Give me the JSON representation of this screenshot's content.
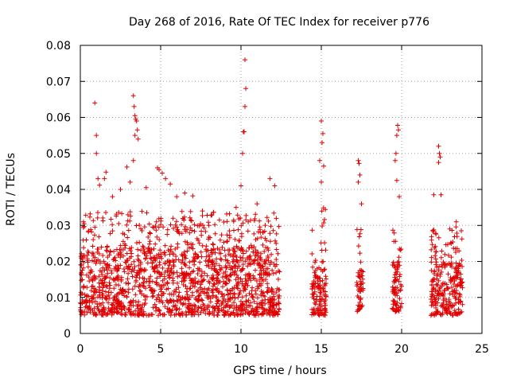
{
  "chart_data": {
    "type": "scatter",
    "title": "Day 268 of 2016, Rate Of TEC Index for receiver p776",
    "xlabel": "GPS time / hours",
    "ylabel": "ROTI / TECUs",
    "xlim": [
      0,
      25
    ],
    "ylim": [
      0,
      0.08
    ],
    "x_ticks": [
      "0",
      "5",
      "10",
      "15",
      "20",
      "25"
    ],
    "y_ticks": [
      "0",
      "0.01",
      "0.02",
      "0.03",
      "0.04",
      "0.05",
      "0.06",
      "0.07",
      "0.08"
    ],
    "grid": true,
    "marker": "+",
    "color": "#e00000",
    "series": [
      {
        "name": "p776",
        "segments": [
          {
            "x_range": [
              0.0,
              12.4
            ],
            "density": 130,
            "base": [
              0.005,
              0.024
            ],
            "tail": 0.034
          },
          {
            "x_range": [
              14.4,
              15.3
            ],
            "density": 140,
            "base": [
              0.005,
              0.02
            ],
            "tail": 0.036
          },
          {
            "x_range": [
              17.2,
              17.6
            ],
            "density": 140,
            "base": [
              0.006,
              0.018
            ],
            "tail": 0.03
          },
          {
            "x_range": [
              19.4,
              20.0
            ],
            "density": 140,
            "base": [
              0.006,
              0.02
            ],
            "tail": 0.03
          },
          {
            "x_range": [
              21.8,
              23.8
            ],
            "density": 130,
            "base": [
              0.005,
              0.02
            ],
            "tail": 0.03
          }
        ],
        "outliers": [
          [
            0.2,
            0.031
          ],
          [
            0.5,
            0.0282
          ],
          [
            0.9,
            0.064
          ],
          [
            1.0,
            0.055
          ],
          [
            1.0,
            0.05
          ],
          [
            1.1,
            0.043
          ],
          [
            1.2,
            0.0412
          ],
          [
            1.5,
            0.043
          ],
          [
            1.6,
            0.0448
          ],
          [
            2.0,
            0.038
          ],
          [
            2.5,
            0.04
          ],
          [
            2.9,
            0.0462
          ],
          [
            3.1,
            0.042
          ],
          [
            3.3,
            0.066
          ],
          [
            3.35,
            0.063
          ],
          [
            3.4,
            0.0605
          ],
          [
            3.45,
            0.0595
          ],
          [
            3.5,
            0.059
          ],
          [
            3.55,
            0.0565
          ],
          [
            3.4,
            0.055
          ],
          [
            3.6,
            0.054
          ],
          [
            3.3,
            0.048
          ],
          [
            4.1,
            0.0405
          ],
          [
            4.8,
            0.046
          ],
          [
            4.9,
            0.0455
          ],
          [
            5.1,
            0.0445
          ],
          [
            5.3,
            0.043
          ],
          [
            5.6,
            0.0415
          ],
          [
            6.0,
            0.038
          ],
          [
            6.5,
            0.039
          ],
          [
            7.0,
            0.0382
          ],
          [
            7.6,
            0.034
          ],
          [
            8.0,
            0.03
          ],
          [
            9.7,
            0.035
          ],
          [
            10.0,
            0.041
          ],
          [
            10.1,
            0.05
          ],
          [
            10.15,
            0.056
          ],
          [
            10.2,
            0.056
          ],
          [
            10.25,
            0.063
          ],
          [
            10.3,
            0.068
          ],
          [
            10.25,
            0.076
          ],
          [
            11.0,
            0.036
          ],
          [
            11.8,
            0.043
          ],
          [
            12.1,
            0.041
          ],
          [
            14.9,
            0.048
          ],
          [
            15.0,
            0.059
          ],
          [
            15.1,
            0.0555
          ],
          [
            15.05,
            0.053
          ],
          [
            15.15,
            0.0465
          ],
          [
            15.0,
            0.042
          ],
          [
            17.3,
            0.048
          ],
          [
            17.35,
            0.0472
          ],
          [
            17.4,
            0.044
          ],
          [
            17.3,
            0.042
          ],
          [
            17.5,
            0.036
          ],
          [
            19.6,
            0.048
          ],
          [
            19.65,
            0.05
          ],
          [
            19.7,
            0.055
          ],
          [
            19.75,
            0.0578
          ],
          [
            19.8,
            0.0565
          ],
          [
            19.7,
            0.0425
          ],
          [
            19.85,
            0.038
          ],
          [
            22.0,
            0.0385
          ],
          [
            22.3,
            0.052
          ],
          [
            22.35,
            0.05
          ],
          [
            22.4,
            0.049
          ],
          [
            22.3,
            0.0475
          ],
          [
            22.45,
            0.0385
          ],
          [
            23.0,
            0.029
          ],
          [
            23.4,
            0.031
          ]
        ]
      }
    ]
  }
}
